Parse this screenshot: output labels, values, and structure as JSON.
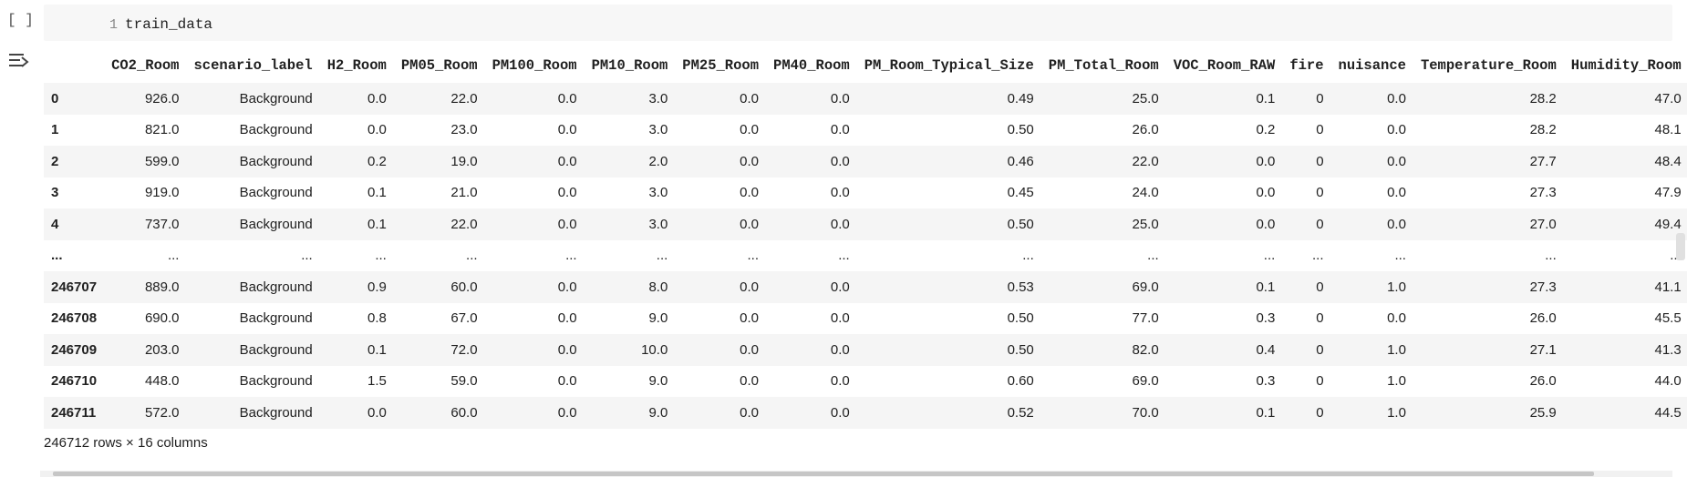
{
  "cell": {
    "run_indicator": "[ ]",
    "line_number": "1",
    "code": "train_data"
  },
  "output": {
    "icon": "output-toggle-icon",
    "shape_info": "246712 rows × 16 columns"
  },
  "dataframe": {
    "columns": [
      "",
      "CO2_Room",
      "scenario_label",
      "H2_Room",
      "PM05_Room",
      "PM100_Room",
      "PM10_Room",
      "PM25_Room",
      "PM40_Room",
      "PM_Room_Typical_Size",
      "PM_Total_Room",
      "VOC_Room_RAW",
      "fire",
      "nuisance",
      "Temperature_Room",
      "Humidity_Room"
    ],
    "rows": [
      {
        "index": "0",
        "cells": [
          "926.0",
          "Background",
          "0.0",
          "22.0",
          "0.0",
          "3.0",
          "0.0",
          "0.0",
          "0.49",
          "25.0",
          "0.1",
          "0",
          "0.0",
          "28.2",
          "47.0"
        ]
      },
      {
        "index": "1",
        "cells": [
          "821.0",
          "Background",
          "0.0",
          "23.0",
          "0.0",
          "3.0",
          "0.0",
          "0.0",
          "0.50",
          "26.0",
          "0.2",
          "0",
          "0.0",
          "28.2",
          "48.1"
        ]
      },
      {
        "index": "2",
        "cells": [
          "599.0",
          "Background",
          "0.2",
          "19.0",
          "0.0",
          "2.0",
          "0.0",
          "0.0",
          "0.46",
          "22.0",
          "0.0",
          "0",
          "0.0",
          "27.7",
          "48.4"
        ]
      },
      {
        "index": "3",
        "cells": [
          "919.0",
          "Background",
          "0.1",
          "21.0",
          "0.0",
          "3.0",
          "0.0",
          "0.0",
          "0.45",
          "24.0",
          "0.0",
          "0",
          "0.0",
          "27.3",
          "47.9"
        ]
      },
      {
        "index": "4",
        "cells": [
          "737.0",
          "Background",
          "0.1",
          "22.0",
          "0.0",
          "3.0",
          "0.0",
          "0.0",
          "0.50",
          "25.0",
          "0.0",
          "0",
          "0.0",
          "27.0",
          "49.4"
        ]
      },
      {
        "index": "...",
        "cells": [
          "...",
          "...",
          "...",
          "...",
          "...",
          "...",
          "...",
          "...",
          "...",
          "...",
          "...",
          "...",
          "...",
          "...",
          "..."
        ]
      },
      {
        "index": "246707",
        "cells": [
          "889.0",
          "Background",
          "0.9",
          "60.0",
          "0.0",
          "8.0",
          "0.0",
          "0.0",
          "0.53",
          "69.0",
          "0.1",
          "0",
          "1.0",
          "27.3",
          "41.1"
        ]
      },
      {
        "index": "246708",
        "cells": [
          "690.0",
          "Background",
          "0.8",
          "67.0",
          "0.0",
          "9.0",
          "0.0",
          "0.0",
          "0.50",
          "77.0",
          "0.3",
          "0",
          "0.0",
          "26.0",
          "45.5"
        ]
      },
      {
        "index": "246709",
        "cells": [
          "203.0",
          "Background",
          "0.1",
          "72.0",
          "0.0",
          "10.0",
          "0.0",
          "0.0",
          "0.50",
          "82.0",
          "0.4",
          "0",
          "1.0",
          "27.1",
          "41.3"
        ]
      },
      {
        "index": "246710",
        "cells": [
          "448.0",
          "Background",
          "1.5",
          "59.0",
          "0.0",
          "9.0",
          "0.0",
          "0.0",
          "0.60",
          "69.0",
          "0.3",
          "0",
          "1.0",
          "26.0",
          "44.0"
        ]
      },
      {
        "index": "246711",
        "cells": [
          "572.0",
          "Background",
          "0.0",
          "60.0",
          "0.0",
          "9.0",
          "0.0",
          "0.0",
          "0.52",
          "70.0",
          "0.1",
          "0",
          "1.0",
          "25.9",
          "44.5"
        ]
      }
    ]
  }
}
